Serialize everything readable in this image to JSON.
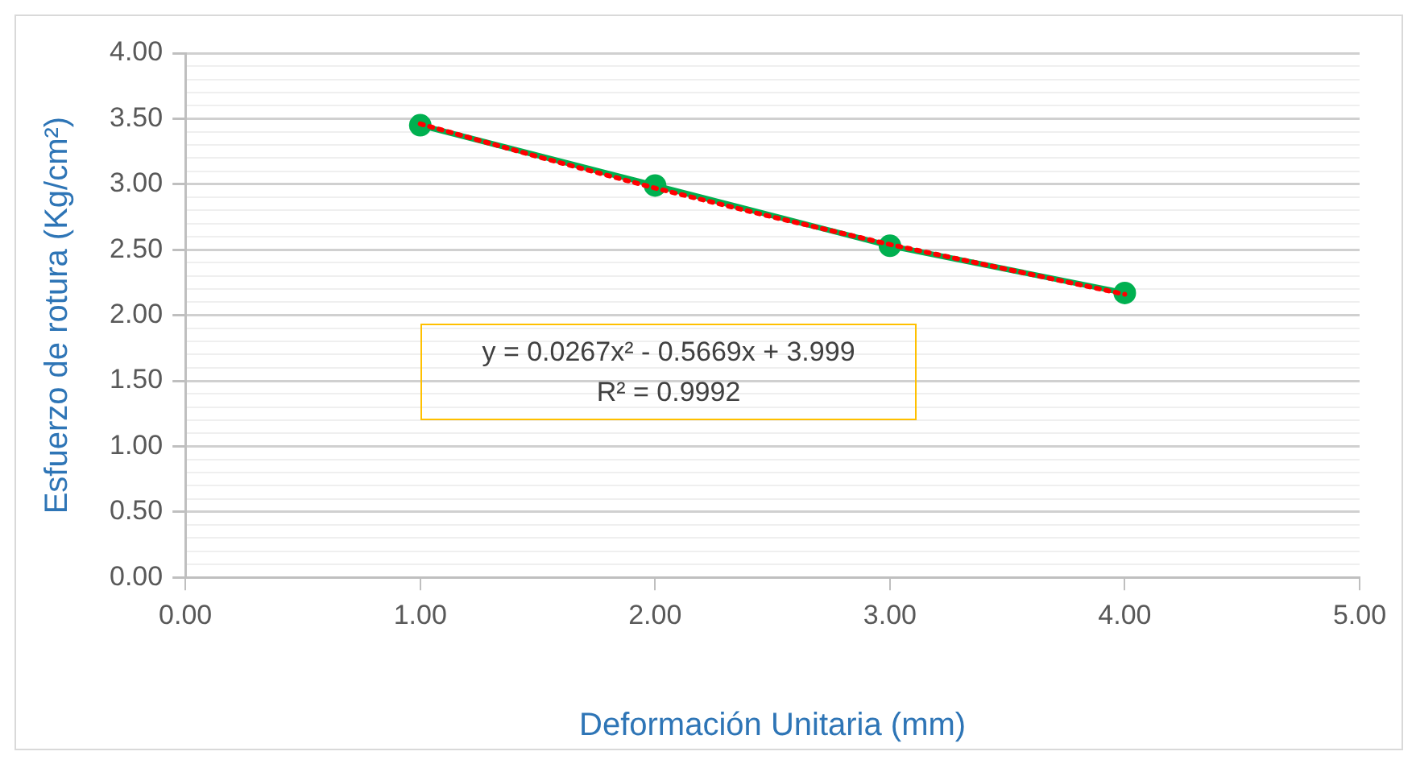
{
  "chart_data": {
    "type": "line",
    "xlabel": "Deformación Unitaria (mm)",
    "ylabel": "Esfuerzo de rotura (Kg/cm²)",
    "x": [
      1,
      2,
      3,
      4
    ],
    "series": [
      {
        "color": "#00b050",
        "marker": "circle",
        "values": [
          3.45,
          2.99,
          2.53,
          2.17
        ]
      },
      {
        "color": "#ff0000",
        "line_style": "dotted",
        "marker": "none",
        "x": [
          1,
          1.5,
          2,
          2.5,
          3,
          3.5,
          4
        ],
        "values": [
          3.46,
          3.21,
          2.97,
          2.75,
          2.54,
          2.35,
          2.16
        ]
      }
    ],
    "xlim": [
      0,
      5
    ],
    "xticks": [
      {
        "value": 0,
        "label": "0.00"
      },
      {
        "value": 1,
        "label": "1.00"
      },
      {
        "value": 2,
        "label": "2.00"
      },
      {
        "value": 3,
        "label": "3.00"
      },
      {
        "value": 4,
        "label": "4.00"
      },
      {
        "value": 5,
        "label": "5.00"
      }
    ],
    "ylim": [
      0,
      4
    ],
    "yticks": [
      {
        "value": 0,
        "label": "0.00"
      },
      {
        "value": 0.1,
        "label": null
      },
      {
        "value": 0.2,
        "label": null
      },
      {
        "value": 0.3,
        "label": null
      },
      {
        "value": 0.4,
        "label": null
      },
      {
        "value": 0.5,
        "label": "0.50"
      },
      {
        "value": 0.6,
        "label": null
      },
      {
        "value": 0.7,
        "label": null
      },
      {
        "value": 0.8,
        "label": null
      },
      {
        "value": 0.9,
        "label": null
      },
      {
        "value": 1,
        "label": "1.00"
      },
      {
        "value": 1.1,
        "label": null
      },
      {
        "value": 1.2,
        "label": null
      },
      {
        "value": 1.3,
        "label": null
      },
      {
        "value": 1.4,
        "label": null
      },
      {
        "value": 1.5,
        "label": "1.50"
      },
      {
        "value": 1.6,
        "label": null
      },
      {
        "value": 1.7,
        "label": null
      },
      {
        "value": 1.8,
        "label": null
      },
      {
        "value": 1.9,
        "label": null
      },
      {
        "value": 2,
        "label": "2.00"
      },
      {
        "value": 2.1,
        "label": null
      },
      {
        "value": 2.2,
        "label": null
      },
      {
        "value": 2.3,
        "label": null
      },
      {
        "value": 2.4,
        "label": null
      },
      {
        "value": 2.5,
        "label": "2.50"
      },
      {
        "value": 2.6,
        "label": null
      },
      {
        "value": 2.7,
        "label": null
      },
      {
        "value": 2.8,
        "label": null
      },
      {
        "value": 2.9,
        "label": null
      },
      {
        "value": 3,
        "label": "3.00"
      },
      {
        "value": 3.1,
        "label": null
      },
      {
        "value": 3.2,
        "label": null
      },
      {
        "value": 3.3,
        "label": null
      },
      {
        "value": 3.4,
        "label": null
      },
      {
        "value": 3.5,
        "label": "3.50"
      },
      {
        "value": 3.6,
        "label": null
      },
      {
        "value": 3.7,
        "label": null
      },
      {
        "value": 3.8,
        "label": null
      },
      {
        "value": 3.9,
        "label": null
      },
      {
        "value": 4,
        "label": "4.00"
      }
    ],
    "grid": "y",
    "legend": false,
    "annotations": [
      "y = 0.0267x² - 0.5669x + 3.999\nR² = 0.9992"
    ]
  }
}
